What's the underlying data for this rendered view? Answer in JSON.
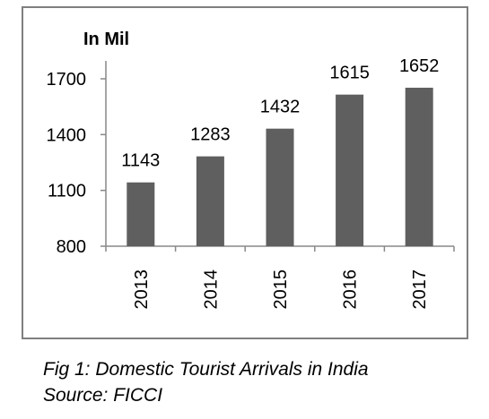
{
  "chart_data": {
    "type": "bar",
    "unit_label": "In Mil",
    "categories": [
      "2013",
      "2014",
      "2015",
      "2016",
      "2017"
    ],
    "values": [
      1143,
      1283,
      1432,
      1615,
      1652
    ],
    "data_labels": [
      "1143",
      "1283",
      "1432",
      "1615",
      "1652"
    ],
    "ylim": [
      800,
      1700
    ],
    "yticks": [
      800,
      1100,
      1400,
      1700
    ],
    "grid": false,
    "legend": "none",
    "bar_color": "#5f5f5f",
    "axis_color": "#888888"
  },
  "caption": {
    "figure_line": "Fig 1: Domestic Tourist Arrivals in India",
    "source_line": "Source: FICCI"
  }
}
